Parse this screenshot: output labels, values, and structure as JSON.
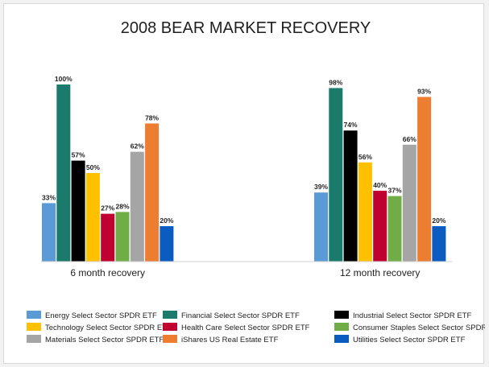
{
  "chart_data": {
    "type": "bar",
    "title": "2008 BEAR MARKET RECOVERY",
    "categories": [
      "6 month recovery",
      "12 month recovery"
    ],
    "ylim": [
      0,
      100
    ],
    "grid": false,
    "legend_placement": "bottom",
    "series": [
      {
        "name": "Energy Select Sector SPDR ETF",
        "color": "#5b9bd5",
        "values": [
          33,
          39
        ],
        "labels": [
          "33%",
          "39%"
        ]
      },
      {
        "name": "Financial Select Sector SPDR ETF",
        "color": "#1a7a6b",
        "values": [
          100,
          98
        ],
        "labels": [
          "100%",
          "98%"
        ]
      },
      {
        "name": "Industrial Select Sector SPDR ETF",
        "color": "#000000",
        "values": [
          57,
          74
        ],
        "labels": [
          "57%",
          "74%"
        ]
      },
      {
        "name": "Technology Select Sector SPDR ETF",
        "color": "#ffc000",
        "values": [
          50,
          56
        ],
        "labels": [
          "50%",
          "56%"
        ]
      },
      {
        "name": "Health Care Select Sector SPDR ETF",
        "color": "#c00030",
        "values": [
          27,
          40
        ],
        "labels": [
          "27%",
          "40%"
        ]
      },
      {
        "name": "Consumer Staples Select Sector SPDR ETF",
        "color": "#70ad47",
        "values": [
          28,
          37
        ],
        "labels": [
          "28%",
          "37%"
        ]
      },
      {
        "name": "Materials Select Sector SPDR ETF",
        "color": "#a5a5a5",
        "values": [
          62,
          66
        ],
        "labels": [
          "62%",
          "66%"
        ]
      },
      {
        "name": "iShares US Real Estate ETF",
        "color": "#ed7d31",
        "values": [
          78,
          93
        ],
        "labels": [
          "78%",
          "93%"
        ]
      },
      {
        "name": "Utilities Select Sector SPDR ETF",
        "color": "#0a5cc0",
        "values": [
          20,
          20
        ],
        "labels": [
          "20%",
          "20%"
        ]
      }
    ]
  }
}
